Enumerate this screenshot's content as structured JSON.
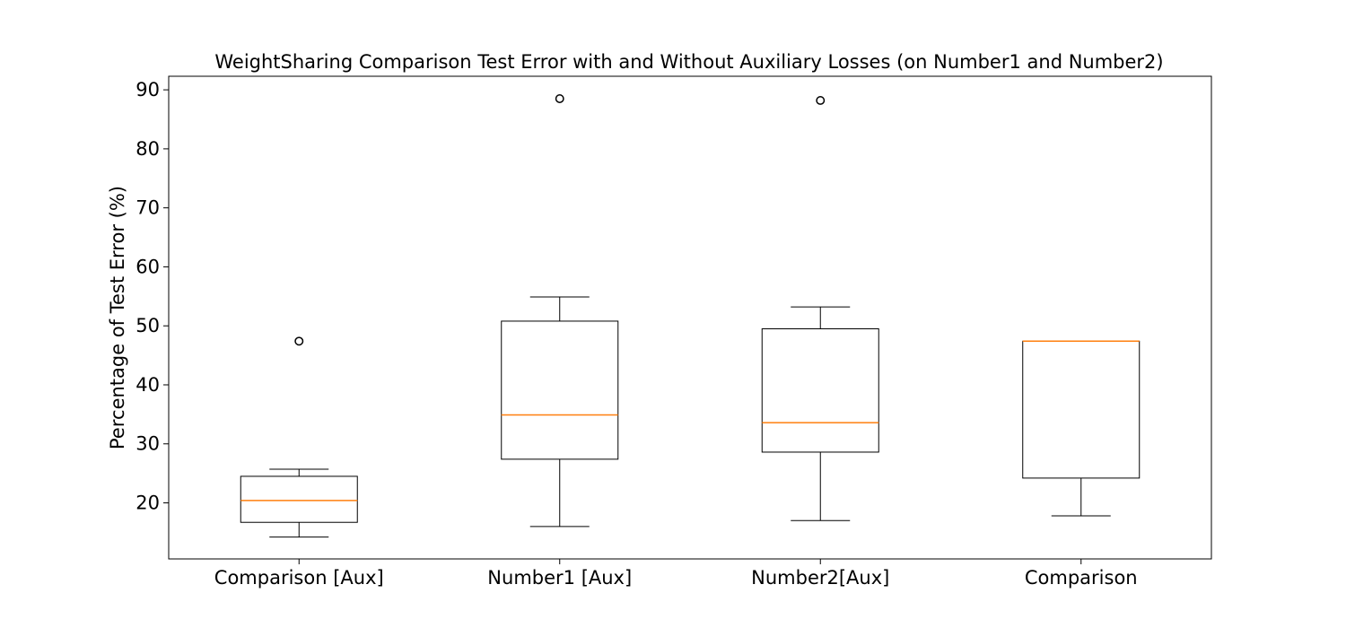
{
  "chart_data": {
    "type": "box",
    "title": "WeightSharing Comparison Test Error with and Without Auxiliary Losses (on Number1 and Number2)",
    "xlabel": "",
    "ylabel": "Percentage of Test Error (%)",
    "ylim": [
      10.5,
      92.3
    ],
    "yticks": [
      20,
      30,
      40,
      50,
      60,
      70,
      80,
      90
    ],
    "grid": false,
    "categories": [
      "Comparison [Aux]",
      "Number1 [Aux]",
      "Number2[Aux]",
      "Comparison"
    ],
    "boxes": [
      {
        "label": "Comparison [Aux]",
        "whisker_low": 14.2,
        "q1": 16.7,
        "median": 20.4,
        "q3": 24.5,
        "whisker_high": 25.7,
        "outliers": [
          47.4
        ]
      },
      {
        "label": "Number1 [Aux]",
        "whisker_low": 16.0,
        "q1": 27.4,
        "median": 34.9,
        "q3": 50.8,
        "whisker_high": 54.9,
        "outliers": [
          88.5
        ]
      },
      {
        "label": "Number2[Aux]",
        "whisker_low": 17.0,
        "q1": 28.6,
        "median": 33.6,
        "q3": 49.5,
        "whisker_high": 53.2,
        "outliers": [
          88.2
        ]
      },
      {
        "label": "Comparison",
        "whisker_low": 17.8,
        "q1": 24.2,
        "median": 47.4,
        "q3": 47.4,
        "whisker_high": 47.4,
        "outliers": []
      }
    ],
    "colors": {
      "box": "#000000",
      "median": "#ff7f0e",
      "outlier": "#000000"
    }
  }
}
